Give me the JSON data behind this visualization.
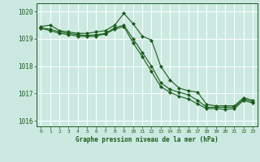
{
  "bg_color": "#cce9e1",
  "grid_color": "#ffffff",
  "line_color": "#1a5c1a",
  "marker_color": "#1a5c1a",
  "xlabel": "Graphe pression niveau de la mer (hPa)",
  "xlabel_color": "#1a5c1a",
  "tick_color": "#1a5c1a",
  "ylim": [
    1015.8,
    1020.3
  ],
  "xlim": [
    -0.5,
    23.5
  ],
  "yticks": [
    1016,
    1017,
    1018,
    1019,
    1020
  ],
  "xticks": [
    0,
    1,
    2,
    3,
    4,
    5,
    6,
    7,
    8,
    9,
    10,
    11,
    12,
    13,
    14,
    15,
    16,
    17,
    18,
    19,
    20,
    21,
    22,
    23
  ],
  "line1_x": [
    0,
    1,
    2,
    3,
    4,
    5,
    6,
    7,
    8,
    9,
    10,
    11,
    12,
    13,
    14,
    15,
    16,
    17,
    18,
    19,
    20,
    21,
    22,
    23
  ],
  "line1_y": [
    1019.45,
    1019.5,
    1019.3,
    1019.25,
    1019.2,
    1019.2,
    1019.25,
    1019.3,
    1019.5,
    1019.93,
    1019.55,
    1019.1,
    1018.95,
    1018.0,
    1017.5,
    1017.2,
    1017.1,
    1017.05,
    1016.6,
    1016.55,
    1016.55,
    1016.55,
    1016.85,
    1016.75
  ],
  "line2_x": [
    0,
    1,
    2,
    3,
    4,
    5,
    6,
    7,
    8,
    9,
    10,
    11,
    12,
    13,
    14,
    15,
    16,
    17,
    18,
    19,
    20,
    21,
    22,
    23
  ],
  "line2_y": [
    1019.4,
    1019.35,
    1019.25,
    1019.2,
    1019.15,
    1019.12,
    1019.15,
    1019.2,
    1019.4,
    1019.5,
    1019.0,
    1018.5,
    1018.0,
    1017.4,
    1017.15,
    1017.05,
    1016.95,
    1016.75,
    1016.5,
    1016.5,
    1016.5,
    1016.5,
    1016.8,
    1016.7
  ],
  "line3_x": [
    0,
    1,
    2,
    3,
    4,
    5,
    6,
    7,
    8,
    9,
    10,
    11,
    12,
    13,
    14,
    15,
    16,
    17,
    18,
    19,
    20,
    21,
    22,
    23
  ],
  "line3_y": [
    1019.38,
    1019.3,
    1019.2,
    1019.15,
    1019.1,
    1019.08,
    1019.1,
    1019.18,
    1019.35,
    1019.45,
    1018.85,
    1018.35,
    1017.8,
    1017.25,
    1017.05,
    1016.9,
    1016.8,
    1016.62,
    1016.45,
    1016.45,
    1016.42,
    1016.45,
    1016.75,
    1016.65
  ]
}
